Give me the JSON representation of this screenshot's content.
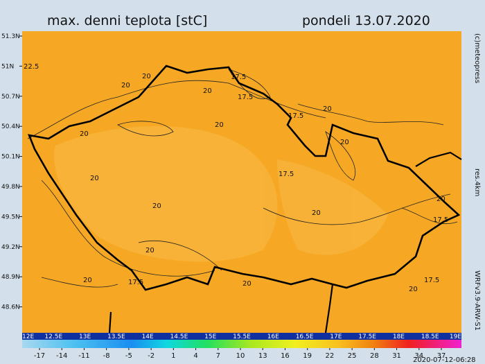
{
  "map": {
    "title": "max. denni teplota [stC]",
    "date": "pondeli 13.07.2020",
    "lat_labels": [
      "51.3N",
      "51N",
      "50.7N",
      "50.4N",
      "50.1N",
      "49.8N",
      "49.5N",
      "49.2N",
      "48.9N",
      "48.6N"
    ],
    "lon_labels": [
      "12E",
      "12.5E",
      "13E",
      "13.5E",
      "14E",
      "14.5E",
      "15E",
      "15.5E",
      "16E",
      "16.5E",
      "17E",
      "17.5E",
      "18E",
      "18.5E",
      "19E"
    ],
    "colorbar_labels": [
      "-17",
      "-14",
      "-11",
      "-8",
      "-5",
      "-2",
      "1",
      "4",
      "7",
      "10",
      "13",
      "16",
      "19",
      "22",
      "25",
      "28",
      "31",
      "34",
      "37"
    ],
    "copyright": "(c)meteopress",
    "resolution": "res.4km",
    "model": "WRFv3.9-ARW-S1",
    "run": "2020-07-12-06:28",
    "contour_labels": [
      "22.5",
      "20",
      "20",
      "17.5",
      "20",
      "17.5",
      "20",
      "20",
      "20",
      "17.5",
      "20",
      "20",
      "20",
      "20",
      "17.5",
      "20",
      "20",
      "17.5",
      "20",
      "17.5",
      "20",
      "20",
      "17.5"
    ]
  }
}
